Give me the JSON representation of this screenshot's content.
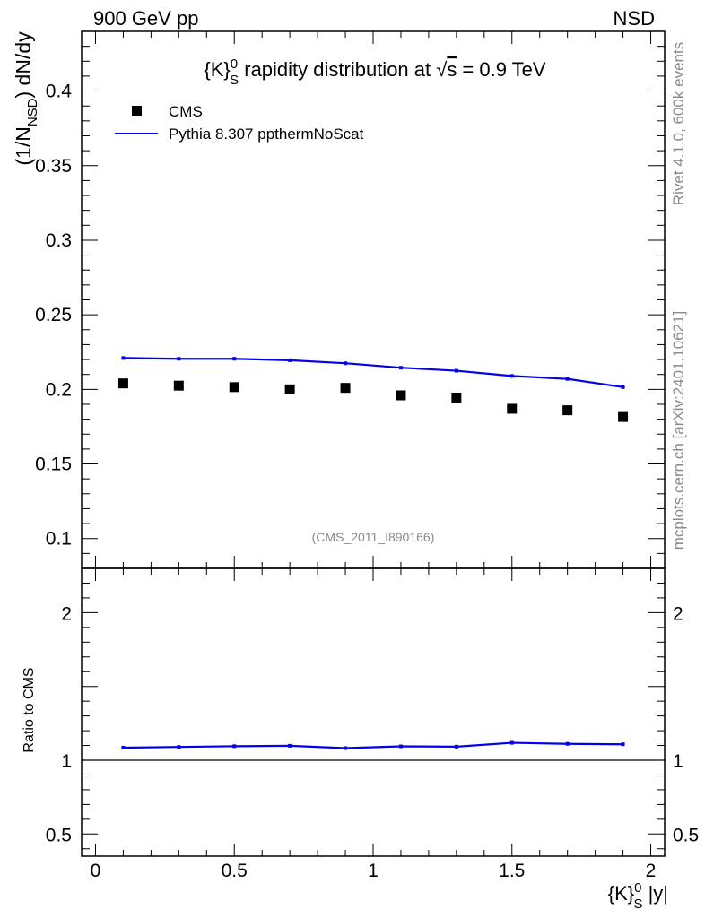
{
  "header": {
    "left": "900 GeV pp",
    "right": "NSD"
  },
  "side_text": {
    "rivet": "Rivet 4.1.0,  600k events",
    "mcplots": "mcplots.cern.ch [arXiv:2401.10621]"
  },
  "colors": {
    "mc": "#0000ee",
    "data": "#000000",
    "watermark": "#8a8a8a"
  },
  "chart_data": [
    {
      "panel": "main",
      "type": "scatter",
      "title_parts": {
        "pre": "{K}",
        "sup": "0",
        "sub": "S",
        "post": " rapidity distribution at ",
        "sqrt_arg": "s",
        "tail": " = 0.9 TeV"
      },
      "ylabel_parts": {
        "pre": "(1/N",
        "sub": "NSD",
        "post": ") dN/dy"
      },
      "xlabel": "",
      "ylim": [
        0.08,
        0.44
      ],
      "xlim": [
        -0.05,
        2.05
      ],
      "yticks": [
        {
          "value": 0.1,
          "label": "0.1"
        },
        {
          "value": 0.15,
          "label": "0.15"
        },
        {
          "value": 0.2,
          "label": "0.2"
        },
        {
          "value": 0.25,
          "label": "0.25"
        },
        {
          "value": 0.3,
          "label": "0.3"
        },
        {
          "value": 0.35,
          "label": "0.35"
        },
        {
          "value": 0.4,
          "label": "0.4"
        }
      ],
      "annotation": "(CMS_2011_I890166)",
      "legend": [
        {
          "name": "CMS",
          "kind": "marker"
        },
        {
          "name": "Pythia 8.307 ppthermNoScat",
          "kind": "line"
        }
      ],
      "series": [
        {
          "name": "CMS",
          "kind": "marker",
          "x": [
            0.1,
            0.3,
            0.5,
            0.7,
            0.9,
            1.1,
            1.3,
            1.5,
            1.7,
            1.9
          ],
          "y": [
            0.204,
            0.2025,
            0.2015,
            0.2,
            0.201,
            0.196,
            0.1945,
            0.187,
            0.186,
            0.1815
          ]
        },
        {
          "name": "Pythia 8.307 ppthermNoScat",
          "kind": "line",
          "x": [
            0.1,
            0.3,
            0.5,
            0.7,
            0.9,
            1.1,
            1.3,
            1.5,
            1.7,
            1.9
          ],
          "y": [
            0.221,
            0.2205,
            0.2205,
            0.2195,
            0.2175,
            0.2145,
            0.2125,
            0.209,
            0.207,
            0.2015
          ]
        }
      ]
    },
    {
      "panel": "ratio",
      "type": "line",
      "ylabel": "Ratio to CMS",
      "xlabel_parts": {
        "pre": "{K}",
        "sup": "0",
        "sub": "S",
        "post": " |y|"
      },
      "ylim": [
        0.35,
        2.3
      ],
      "xlim": [
        -0.05,
        2.05
      ],
      "yticks": [
        {
          "value": 0.5,
          "label": "0.5"
        },
        {
          "value": 1,
          "label": "1"
        },
        {
          "value": 2,
          "label": "2"
        }
      ],
      "xticks": [
        {
          "value": 0,
          "label": "0"
        },
        {
          "value": 0.5,
          "label": "0.5"
        },
        {
          "value": 1,
          "label": "1"
        },
        {
          "value": 1.5,
          "label": "1.5"
        },
        {
          "value": 2,
          "label": "2"
        }
      ],
      "reference": 1,
      "series": [
        {
          "name": "Pythia 8.307 ppthermNoScat / CMS",
          "x": [
            0.1,
            0.3,
            0.5,
            0.7,
            0.9,
            1.1,
            1.3,
            1.5,
            1.7,
            1.9
          ],
          "y": [
            1.085,
            1.09,
            1.095,
            1.098,
            1.082,
            1.094,
            1.092,
            1.118,
            1.111,
            1.108
          ]
        }
      ]
    }
  ]
}
